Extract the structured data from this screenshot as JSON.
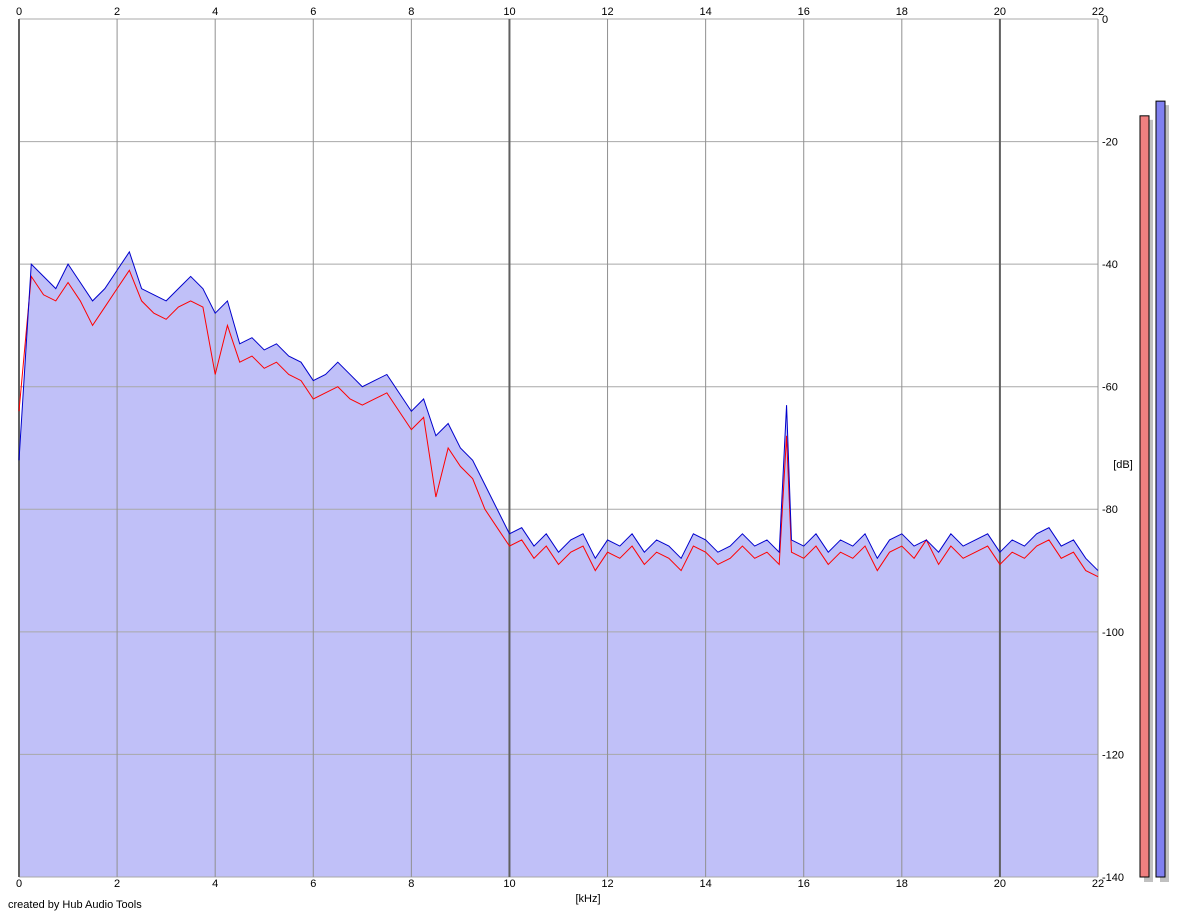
{
  "chart_data": {
    "type": "spectrum",
    "x_label": "[kHz]",
    "y_label": "[dB]",
    "footer": "created by Hub Audio Tools",
    "xlim": [
      0,
      22
    ],
    "xticks": [
      0,
      2,
      4,
      6,
      8,
      10,
      12,
      14,
      16,
      18,
      20,
      22
    ],
    "ylim": [
      -140,
      0
    ],
    "yticks": [
      0,
      -20,
      -40,
      -60,
      -80,
      -100,
      -120,
      -140
    ],
    "grid": true,
    "fill_color": "#c0c0f8",
    "x": [
      0,
      0.25,
      0.5,
      0.75,
      1,
      1.25,
      1.5,
      1.75,
      2,
      2.25,
      2.5,
      2.75,
      3,
      3.25,
      3.5,
      3.75,
      4,
      4.25,
      4.5,
      4.75,
      5,
      5.25,
      5.5,
      5.75,
      6,
      6.25,
      6.5,
      6.75,
      7,
      7.25,
      7.5,
      7.75,
      8,
      8.25,
      8.5,
      8.75,
      9,
      9.25,
      9.5,
      9.75,
      10,
      10.25,
      10.5,
      10.75,
      11,
      11.25,
      11.5,
      11.75,
      12,
      12.25,
      12.5,
      12.75,
      13,
      13.25,
      13.5,
      13.75,
      14,
      14.25,
      14.5,
      14.75,
      15,
      15.25,
      15.5,
      15.65,
      15.75,
      16,
      16.25,
      16.5,
      16.75,
      17,
      17.25,
      17.5,
      17.75,
      18,
      18.25,
      18.5,
      18.75,
      19,
      19.25,
      19.5,
      19.75,
      20,
      20.25,
      20.5,
      20.75,
      21,
      21.25,
      21.5,
      21.75,
      22
    ],
    "series": [
      {
        "color": "#ff0000",
        "values": [
          -64,
          -42,
          -45,
          -46,
          -43,
          -46,
          -50,
          -47,
          -44,
          -41,
          -46,
          -48,
          -49,
          -47,
          -46,
          -47,
          -58,
          -50,
          -56,
          -55,
          -57,
          -56,
          -58,
          -59,
          -62,
          -61,
          -60,
          -62,
          -63,
          -62,
          -61,
          -64,
          -67,
          -65,
          -78,
          -70,
          -73,
          -75,
          -80,
          -83,
          -86,
          -85,
          -88,
          -86,
          -89,
          -87,
          -86,
          -90,
          -87,
          -88,
          -86,
          -89,
          -87,
          -88,
          -90,
          -86,
          -87,
          -89,
          -88,
          -86,
          -88,
          -87,
          -89,
          -68,
          -87,
          -88,
          -86,
          -89,
          -87,
          -88,
          -86,
          -90,
          -87,
          -86,
          -88,
          -85,
          -89,
          -86,
          -88,
          -87,
          -86,
          -89,
          -87,
          -88,
          -86,
          -85,
          -88,
          -87,
          -90,
          -91
        ]
      },
      {
        "color": "#0000cc",
        "values": [
          -72,
          -40,
          -42,
          -44,
          -40,
          -43,
          -46,
          -44,
          -41,
          -38,
          -44,
          -45,
          -46,
          -44,
          -42,
          -44,
          -48,
          -46,
          -53,
          -52,
          -54,
          -53,
          -55,
          -56,
          -59,
          -58,
          -56,
          -58,
          -60,
          -59,
          -58,
          -61,
          -64,
          -62,
          -68,
          -66,
          -70,
          -72,
          -76,
          -80,
          -84,
          -83,
          -86,
          -84,
          -87,
          -85,
          -84,
          -88,
          -85,
          -86,
          -84,
          -87,
          -85,
          -86,
          -88,
          -84,
          -85,
          -87,
          -86,
          -84,
          -86,
          -85,
          -87,
          -63,
          -85,
          -86,
          -84,
          -87,
          -85,
          -86,
          -84,
          -88,
          -85,
          -84,
          -86,
          -85,
          -87,
          -84,
          -86,
          -85,
          -84,
          -87,
          -85,
          -86,
          -84,
          -83,
          -86,
          -85,
          -88,
          -90
        ]
      }
    ],
    "meters": [
      {
        "color": "#f08080",
        "value": -15.8
      },
      {
        "color": "#8080f0",
        "value": -13.4
      }
    ]
  }
}
